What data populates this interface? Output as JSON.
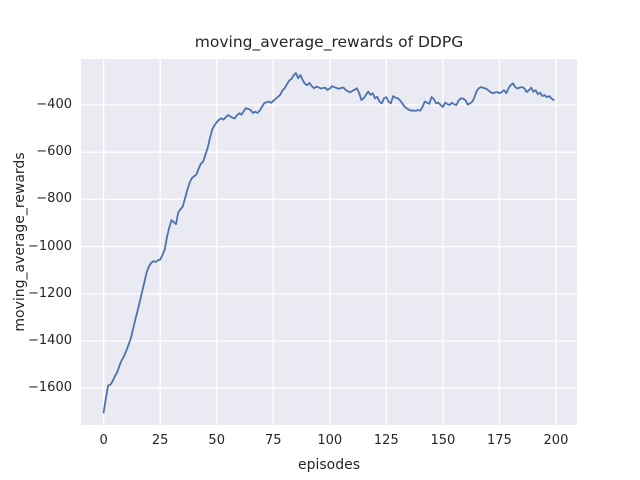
{
  "chart_data": {
    "type": "line",
    "title": "moving_average_rewards of DDPG",
    "xlabel": "episodes",
    "ylabel": "moving_average_rewards",
    "xlim": [
      -10,
      209.3
    ],
    "ylim": [
      -1756,
      -205
    ],
    "grid": true,
    "legend": false,
    "xtick_values": [
      0,
      25,
      50,
      75,
      100,
      125,
      150,
      175,
      200
    ],
    "xtick_labels": [
      "0",
      "25",
      "50",
      "75",
      "100",
      "125",
      "150",
      "175",
      "200"
    ],
    "ytick_values": [
      -400,
      -600,
      -800,
      -1000,
      -1200,
      -1400,
      -1600
    ],
    "ytick_labels": [
      "−400",
      "−600",
      "−800",
      "−1000",
      "−1200",
      "−1400",
      "−1600"
    ],
    "style": {
      "line_color": "#4c72b0",
      "plot_background": "#eaeaf2",
      "grid_color": "#ffffff",
      "text_color": "#262626",
      "figure_background": "#ffffff",
      "line_width": 1.8
    },
    "series": [
      {
        "name": "moving_average_rewards",
        "x_range": [
          0,
          199
        ],
        "x_step": 1,
        "y": [
          -1703,
          -1643,
          -1588,
          -1585,
          -1570,
          -1549,
          -1532,
          -1505,
          -1482,
          -1465,
          -1442,
          -1417,
          -1390,
          -1350,
          -1310,
          -1272,
          -1233,
          -1192,
          -1152,
          -1110,
          -1085,
          -1069,
          -1062,
          -1065,
          -1058,
          -1055,
          -1036,
          -1013,
          -960,
          -920,
          -888,
          -896,
          -905,
          -855,
          -842,
          -830,
          -795,
          -760,
          -730,
          -710,
          -702,
          -695,
          -670,
          -648,
          -640,
          -610,
          -582,
          -540,
          -504,
          -486,
          -473,
          -463,
          -456,
          -462,
          -452,
          -443,
          -448,
          -454,
          -457,
          -443,
          -435,
          -441,
          -425,
          -413,
          -417,
          -421,
          -434,
          -428,
          -434,
          -424,
          -408,
          -392,
          -388,
          -385,
          -391,
          -383,
          -374,
          -366,
          -358,
          -340,
          -329,
          -313,
          -297,
          -290,
          -275,
          -264,
          -287,
          -273,
          -294,
          -310,
          -316,
          -306,
          -320,
          -329,
          -322,
          -325,
          -330,
          -328,
          -327,
          -336,
          -330,
          -320,
          -324,
          -328,
          -331,
          -328,
          -326,
          -336,
          -342,
          -346,
          -340,
          -335,
          -329,
          -350,
          -379,
          -371,
          -357,
          -343,
          -357,
          -350,
          -372,
          -365,
          -386,
          -393,
          -371,
          -367,
          -386,
          -393,
          -362,
          -369,
          -371,
          -380,
          -392,
          -407,
          -414,
          -420,
          -424,
          -423,
          -425,
          -421,
          -424,
          -408,
          -385,
          -390,
          -395,
          -366,
          -375,
          -393,
          -390,
          -400,
          -408,
          -390,
          -396,
          -400,
          -390,
          -397,
          -400,
          -380,
          -372,
          -373,
          -380,
          -398,
          -393,
          -386,
          -366,
          -340,
          -328,
          -324,
          -328,
          -330,
          -337,
          -345,
          -350,
          -347,
          -345,
          -350,
          -345,
          -337,
          -350,
          -330,
          -315,
          -308,
          -324,
          -330,
          -326,
          -324,
          -329,
          -345,
          -338,
          -326,
          -344,
          -337,
          -354,
          -348,
          -362,
          -358,
          -367,
          -362,
          -372,
          -379
        ]
      }
    ]
  }
}
